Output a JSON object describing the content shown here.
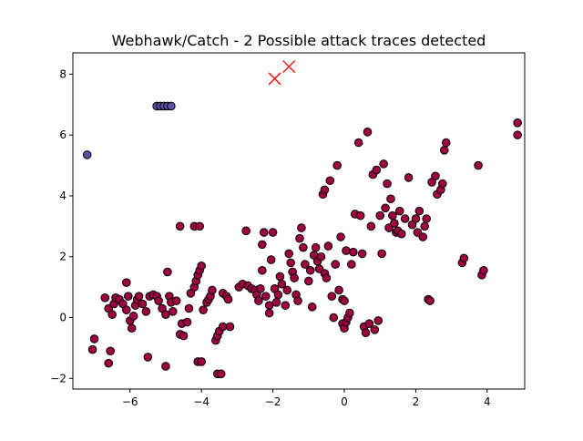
{
  "chart_data": {
    "type": "scatter",
    "title": "Webhawk/Catch - 2 Possible attack traces detected",
    "xlabel": "",
    "ylabel": "",
    "xlim": [
      -7.6,
      5.05
    ],
    "ylim": [
      -2.35,
      8.7
    ],
    "xticks": [
      -6,
      -4,
      -2,
      0,
      2,
      4
    ],
    "yticks": [
      -2,
      0,
      2,
      4,
      6,
      8
    ],
    "xtick_labels": [
      "−6",
      "−4",
      "−2",
      "0",
      "2",
      "4"
    ],
    "ytick_labels": [
      "−2",
      "0",
      "2",
      "4",
      "6",
      "8"
    ],
    "grid": false,
    "legend": "none",
    "colors": {
      "main_cluster": "#9e0142",
      "outlier_cluster": "#5e4fa2",
      "edge": "#000000",
      "attack_marker": "#ff0000",
      "axes": "#000000"
    },
    "series": [
      {
        "marker": "circle",
        "color": "#9e0142",
        "points": [
          [
            -7.05,
            -1.05
          ],
          [
            -7.0,
            -0.7
          ],
          [
            -6.6,
            -1.5
          ],
          [
            -6.55,
            -1.1
          ],
          [
            -6.7,
            0.65
          ],
          [
            -6.6,
            0.3
          ],
          [
            -6.5,
            0.1
          ],
          [
            -6.45,
            0.45
          ],
          [
            -6.4,
            0.65
          ],
          [
            -6.3,
            0.6
          ],
          [
            -6.2,
            0.45
          ],
          [
            -6.1,
            0.25
          ],
          [
            -6.05,
            0.7
          ],
          [
            -6.1,
            1.15
          ],
          [
            -6.0,
            -0.1
          ],
          [
            -5.95,
            -0.35
          ],
          [
            -5.9,
            0.05
          ],
          [
            -5.85,
            0.4
          ],
          [
            -5.8,
            0.6
          ],
          [
            -5.75,
            0.7
          ],
          [
            -5.65,
            0.45
          ],
          [
            -5.55,
            0.2
          ],
          [
            -5.5,
            -1.3
          ],
          [
            -5.45,
            0.7
          ],
          [
            -5.35,
            0.75
          ],
          [
            -5.25,
            0.7
          ],
          [
            -5.2,
            0.55
          ],
          [
            -5.1,
            0.3
          ],
          [
            -5.0,
            -1.6
          ],
          [
            -5.0,
            0.1
          ],
          [
            -4.95,
            1.5
          ],
          [
            -4.9,
            0.7
          ],
          [
            -4.85,
            0.5
          ],
          [
            -4.8,
            0.2
          ],
          [
            -4.7,
            0.55
          ],
          [
            -4.6,
            3.0
          ],
          [
            -4.55,
            -0.2
          ],
          [
            -4.6,
            -0.55
          ],
          [
            -4.5,
            -0.6
          ],
          [
            -4.4,
            -0.15
          ],
          [
            -4.35,
            0.3
          ],
          [
            -4.3,
            0.8
          ],
          [
            -4.2,
            1.0
          ],
          [
            -4.15,
            1.2
          ],
          [
            -4.1,
            1.4
          ],
          [
            -4.05,
            1.55
          ],
          [
            -4.0,
            1.7
          ],
          [
            -4.2,
            3.0
          ],
          [
            -4.05,
            3.0
          ],
          [
            -4.1,
            -1.45
          ],
          [
            -4.0,
            -1.45
          ],
          [
            -3.95,
            0.25
          ],
          [
            -3.85,
            0.5
          ],
          [
            -3.8,
            0.6
          ],
          [
            -3.75,
            0.7
          ],
          [
            -3.7,
            0.9
          ],
          [
            -3.6,
            -0.75
          ],
          [
            -3.55,
            -0.6
          ],
          [
            -3.5,
            -0.45
          ],
          [
            -3.4,
            -0.3
          ],
          [
            -3.55,
            -1.85
          ],
          [
            -3.45,
            -1.85
          ],
          [
            -3.4,
            0.8
          ],
          [
            -3.3,
            0.7
          ],
          [
            -3.25,
            0.6
          ],
          [
            -3.2,
            -0.3
          ],
          [
            -2.95,
            1.0
          ],
          [
            -2.85,
            1.1
          ],
          [
            -2.75,
            2.85
          ],
          [
            -2.7,
            1.05
          ],
          [
            -2.6,
            0.95
          ],
          [
            -2.5,
            0.9
          ],
          [
            -2.45,
            0.75
          ],
          [
            -2.4,
            0.55
          ],
          [
            -2.35,
            0.95
          ],
          [
            -2.3,
            1.55
          ],
          [
            -2.3,
            2.4
          ],
          [
            -2.25,
            2.8
          ],
          [
            -2.2,
            0.7
          ],
          [
            -2.1,
            0.4
          ],
          [
            -2.1,
            0.15
          ],
          [
            -2.05,
            1.9
          ],
          [
            -2.0,
            2.8
          ],
          [
            -1.95,
            0.95
          ],
          [
            -1.9,
            0.5
          ],
          [
            -1.85,
            0.75
          ],
          [
            -1.8,
            1.35
          ],
          [
            -1.75,
            1.1
          ],
          [
            -1.65,
            0.4
          ],
          [
            -1.6,
            0.9
          ],
          [
            -1.55,
            2.1
          ],
          [
            -1.5,
            1.8
          ],
          [
            -1.45,
            1.5
          ],
          [
            -1.4,
            1.3
          ],
          [
            -1.35,
            0.75
          ],
          [
            -1.3,
            0.55
          ],
          [
            -1.25,
            2.6
          ],
          [
            -1.2,
            2.95
          ],
          [
            -1.15,
            2.3
          ],
          [
            -1.1,
            1.75
          ],
          [
            -1.0,
            1.2
          ],
          [
            -0.95,
            1.55
          ],
          [
            -0.9,
            0.35
          ],
          [
            -0.85,
            2.05
          ],
          [
            -0.8,
            2.3
          ],
          [
            -0.75,
            1.85
          ],
          [
            -0.7,
            1.6
          ],
          [
            -0.65,
            2.0
          ],
          [
            -0.6,
            4.05
          ],
          [
            -0.55,
            4.2
          ],
          [
            -0.55,
            1.45
          ],
          [
            -0.5,
            1.3
          ],
          [
            -0.45,
            2.35
          ],
          [
            -0.4,
            4.5
          ],
          [
            -0.35,
            0.7
          ],
          [
            -0.3,
            0.0
          ],
          [
            -0.25,
            1.75
          ],
          [
            -0.2,
            5.0
          ],
          [
            -0.15,
            0.9
          ],
          [
            -0.1,
            2.65
          ],
          [
            -0.05,
            0.6
          ],
          [
            0.0,
            0.55
          ],
          [
            0.05,
            2.2
          ],
          [
            -0.05,
            -0.2
          ],
          [
            0.0,
            -0.35
          ],
          [
            0.05,
            -0.15
          ],
          [
            0.1,
            0.0
          ],
          [
            0.15,
            0.15
          ],
          [
            0.2,
            1.75
          ],
          [
            0.25,
            2.15
          ],
          [
            0.3,
            3.4
          ],
          [
            0.4,
            5.75
          ],
          [
            0.45,
            3.35
          ],
          [
            0.5,
            2.1
          ],
          [
            0.55,
            -0.3
          ],
          [
            0.6,
            -0.5
          ],
          [
            0.65,
            6.1
          ],
          [
            0.7,
            -0.2
          ],
          [
            0.75,
            3.0
          ],
          [
            0.8,
            4.7
          ],
          [
            0.85,
            -0.4
          ],
          [
            0.9,
            4.85
          ],
          [
            0.95,
            -0.1
          ],
          [
            1.0,
            3.35
          ],
          [
            1.05,
            2.1
          ],
          [
            1.1,
            5.05
          ],
          [
            1.15,
            3.6
          ],
          [
            1.2,
            4.4
          ],
          [
            1.25,
            2.95
          ],
          [
            1.3,
            3.9
          ],
          [
            1.35,
            3.35
          ],
          [
            1.4,
            3.1
          ],
          [
            1.45,
            2.8
          ],
          [
            1.5,
            2.85
          ],
          [
            1.55,
            3.5
          ],
          [
            1.6,
            2.75
          ],
          [
            1.7,
            3.25
          ],
          [
            1.8,
            4.6
          ],
          [
            1.9,
            3.05
          ],
          [
            2.0,
            3.25
          ],
          [
            2.05,
            2.8
          ],
          [
            2.1,
            3.5
          ],
          [
            2.2,
            2.65
          ],
          [
            2.25,
            3.0
          ],
          [
            2.3,
            3.25
          ],
          [
            2.35,
            0.6
          ],
          [
            2.4,
            0.55
          ],
          [
            2.45,
            4.45
          ],
          [
            2.55,
            4.65
          ],
          [
            2.6,
            4.05
          ],
          [
            2.7,
            4.2
          ],
          [
            2.75,
            4.4
          ],
          [
            2.8,
            5.5
          ],
          [
            2.85,
            5.75
          ],
          [
            3.3,
            1.8
          ],
          [
            3.35,
            1.95
          ],
          [
            3.75,
            5.0
          ],
          [
            3.85,
            1.4
          ],
          [
            3.9,
            1.55
          ],
          [
            4.85,
            6.4
          ],
          [
            4.85,
            6.0
          ]
        ]
      },
      {
        "marker": "circle",
        "color": "#5e4fa2",
        "points": [
          [
            -5.25,
            6.95
          ],
          [
            -5.15,
            6.95
          ],
          [
            -5.05,
            6.95
          ],
          [
            -4.95,
            6.95
          ],
          [
            -4.85,
            6.95
          ],
          [
            -7.2,
            5.35
          ]
        ]
      },
      {
        "marker": "x",
        "color": "#ff0000",
        "points": [
          [
            -1.95,
            7.85
          ],
          [
            -1.55,
            8.25
          ]
        ]
      }
    ]
  }
}
